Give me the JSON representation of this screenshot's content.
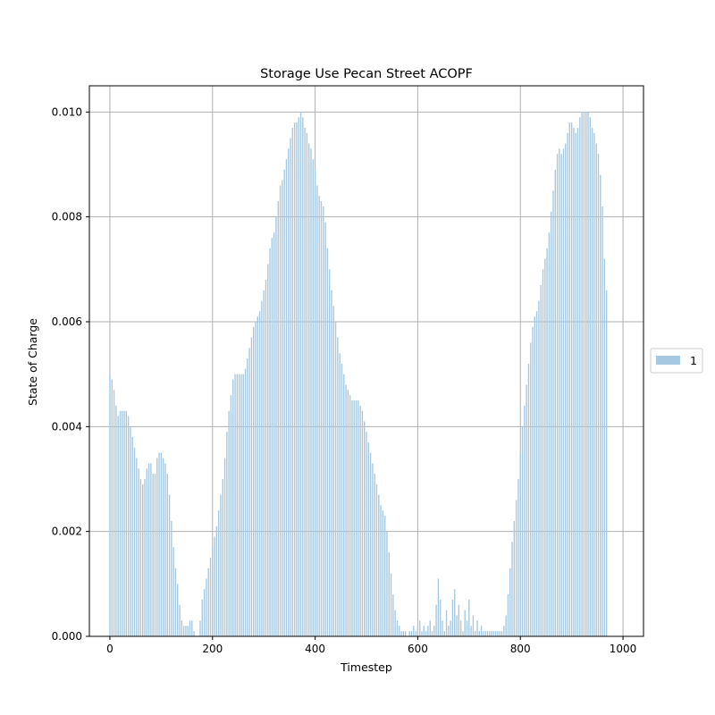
{
  "chart_data": {
    "type": "bar",
    "title": "Storage Use Pecan Street ACOPF",
    "xlabel": "Timestep",
    "ylabel": "State of Charge",
    "xlim": [
      -40,
      1040
    ],
    "ylim": [
      0,
      0.0105
    ],
    "xticks": [
      0,
      200,
      400,
      600,
      800,
      1000
    ],
    "xtick_labels": [
      "0",
      "200",
      "400",
      "600",
      "800",
      "1000"
    ],
    "yticks": [
      0,
      0.002,
      0.004,
      0.006,
      0.008,
      0.01
    ],
    "ytick_labels": [
      "0.000",
      "0.002",
      "0.004",
      "0.006",
      "0.008",
      "0.010"
    ],
    "grid": true,
    "legend_position": "right",
    "bar_color": "#a6c8e0",
    "series": [
      {
        "name": "1",
        "x_start": 0,
        "x_step": 4,
        "values": [
          0.005,
          0.0049,
          0.0047,
          0.0044,
          0.0042,
          0.0043,
          0.0043,
          0.0043,
          0.0043,
          0.0042,
          0.004,
          0.0038,
          0.0036,
          0.0034,
          0.0032,
          0.003,
          0.0029,
          0.003,
          0.0032,
          0.0033,
          0.0033,
          0.0031,
          0.0031,
          0.0034,
          0.0035,
          0.0035,
          0.0034,
          0.0033,
          0.0031,
          0.0027,
          0.0022,
          0.0017,
          0.0013,
          0.001,
          0.0006,
          0.0003,
          0.0002,
          0.0002,
          0.0002,
          0.0003,
          0.0003,
          0.0001,
          0.0,
          0.0,
          0.0003,
          0.0007,
          0.0009,
          0.0011,
          0.0013,
          0.0015,
          0.0017,
          0.0019,
          0.0021,
          0.0024,
          0.0027,
          0.003,
          0.0034,
          0.0039,
          0.0043,
          0.0046,
          0.0049,
          0.005,
          0.005,
          0.005,
          0.005,
          0.005,
          0.0051,
          0.0053,
          0.0055,
          0.0057,
          0.0059,
          0.006,
          0.0061,
          0.0062,
          0.0064,
          0.0066,
          0.0068,
          0.0071,
          0.0074,
          0.0076,
          0.0077,
          0.008,
          0.0083,
          0.0086,
          0.0087,
          0.0089,
          0.0091,
          0.0093,
          0.0095,
          0.0097,
          0.0098,
          0.0098,
          0.0099,
          0.01,
          0.0099,
          0.0097,
          0.0096,
          0.0094,
          0.0093,
          0.0091,
          0.0089,
          0.0086,
          0.0084,
          0.0083,
          0.0082,
          0.0079,
          0.0074,
          0.007,
          0.0066,
          0.0063,
          0.006,
          0.0057,
          0.0054,
          0.0052,
          0.005,
          0.0048,
          0.0047,
          0.0046,
          0.0045,
          0.0045,
          0.0045,
          0.0045,
          0.0044,
          0.0043,
          0.0041,
          0.0039,
          0.0037,
          0.0035,
          0.0033,
          0.0031,
          0.0029,
          0.0027,
          0.0025,
          0.0024,
          0.0023,
          0.002,
          0.0016,
          0.0012,
          0.0008,
          0.0005,
          0.0003,
          0.0002,
          0.0001,
          0.0001,
          0.0001,
          0.0,
          0.0001,
          0.0001,
          0.0002,
          0.0001,
          0.0002,
          0.0003,
          0.0001,
          0.0002,
          0.0001,
          0.0002,
          0.0003,
          0.0001,
          0.0002,
          0.0006,
          0.0011,
          0.0007,
          0.0003,
          0.0001,
          0.0005,
          0.0002,
          0.0003,
          0.0007,
          0.0009,
          0.0004,
          0.0006,
          0.0003,
          0.0001,
          0.0005,
          0.0003,
          0.0007,
          0.0002,
          0.0004,
          0.0001,
          0.0003,
          0.0001,
          0.0002,
          0.0001,
          0.0001,
          0.0001,
          0.0001,
          0.0001,
          0.0001,
          0.0001,
          0.0001,
          0.0001,
          0.0001,
          0.0002,
          0.0004,
          0.0008,
          0.0013,
          0.0018,
          0.0022,
          0.0026,
          0.003,
          0.0035,
          0.004,
          0.0044,
          0.0048,
          0.0052,
          0.0056,
          0.0059,
          0.0061,
          0.0062,
          0.0064,
          0.0067,
          0.007,
          0.0072,
          0.0074,
          0.0077,
          0.0081,
          0.0085,
          0.0089,
          0.0092,
          0.0093,
          0.0092,
          0.0093,
          0.0094,
          0.0096,
          0.0098,
          0.0098,
          0.0097,
          0.0096,
          0.0097,
          0.0099,
          0.01,
          0.01,
          0.01,
          0.01,
          0.0099,
          0.0097,
          0.0096,
          0.0094,
          0.0092,
          0.0088,
          0.0082,
          0.0072,
          0.0066
        ]
      }
    ]
  }
}
